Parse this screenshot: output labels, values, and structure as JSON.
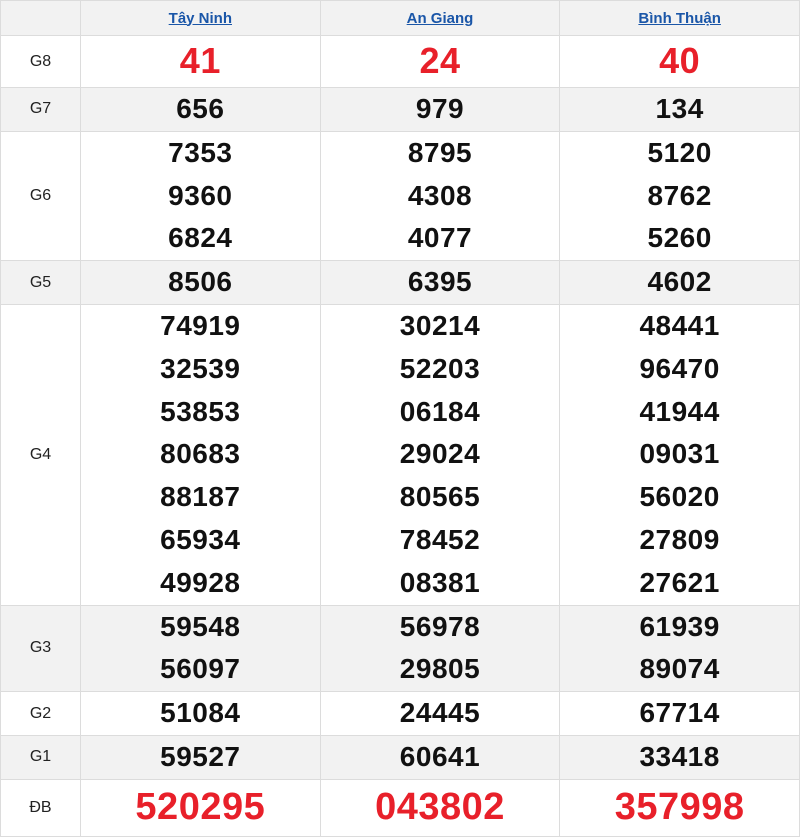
{
  "headers": [
    "Tây Ninh",
    "An Giang",
    "Bình Thuận"
  ],
  "colors": {
    "link": "#1a56a8",
    "highlight": "#e8202a",
    "alt_row": "#f2f2f2"
  },
  "rows": [
    {
      "label": "G8",
      "values": [
        [
          "41"
        ],
        [
          "24"
        ],
        [
          "40"
        ]
      ]
    },
    {
      "label": "G7",
      "values": [
        [
          "656"
        ],
        [
          "979"
        ],
        [
          "134"
        ]
      ]
    },
    {
      "label": "G6",
      "values": [
        [
          "7353",
          "9360",
          "6824"
        ],
        [
          "8795",
          "4308",
          "4077"
        ],
        [
          "5120",
          "8762",
          "5260"
        ]
      ]
    },
    {
      "label": "G5",
      "values": [
        [
          "8506"
        ],
        [
          "6395"
        ],
        [
          "4602"
        ]
      ]
    },
    {
      "label": "G4",
      "values": [
        [
          "74919",
          "32539",
          "53853",
          "80683",
          "88187",
          "65934",
          "49928"
        ],
        [
          "30214",
          "52203",
          "06184",
          "29024",
          "80565",
          "78452",
          "08381"
        ],
        [
          "48441",
          "96470",
          "41944",
          "09031",
          "56020",
          "27809",
          "27621"
        ]
      ]
    },
    {
      "label": "G3",
      "values": [
        [
          "59548",
          "56097"
        ],
        [
          "56978",
          "29805"
        ],
        [
          "61939",
          "89074"
        ]
      ]
    },
    {
      "label": "G2",
      "values": [
        [
          "51084"
        ],
        [
          "24445"
        ],
        [
          "67714"
        ]
      ]
    },
    {
      "label": "G1",
      "values": [
        [
          "59527"
        ],
        [
          "60641"
        ],
        [
          "33418"
        ]
      ]
    },
    {
      "label": "ĐB",
      "values": [
        [
          "520295"
        ],
        [
          "043802"
        ],
        [
          "357998"
        ]
      ]
    }
  ]
}
